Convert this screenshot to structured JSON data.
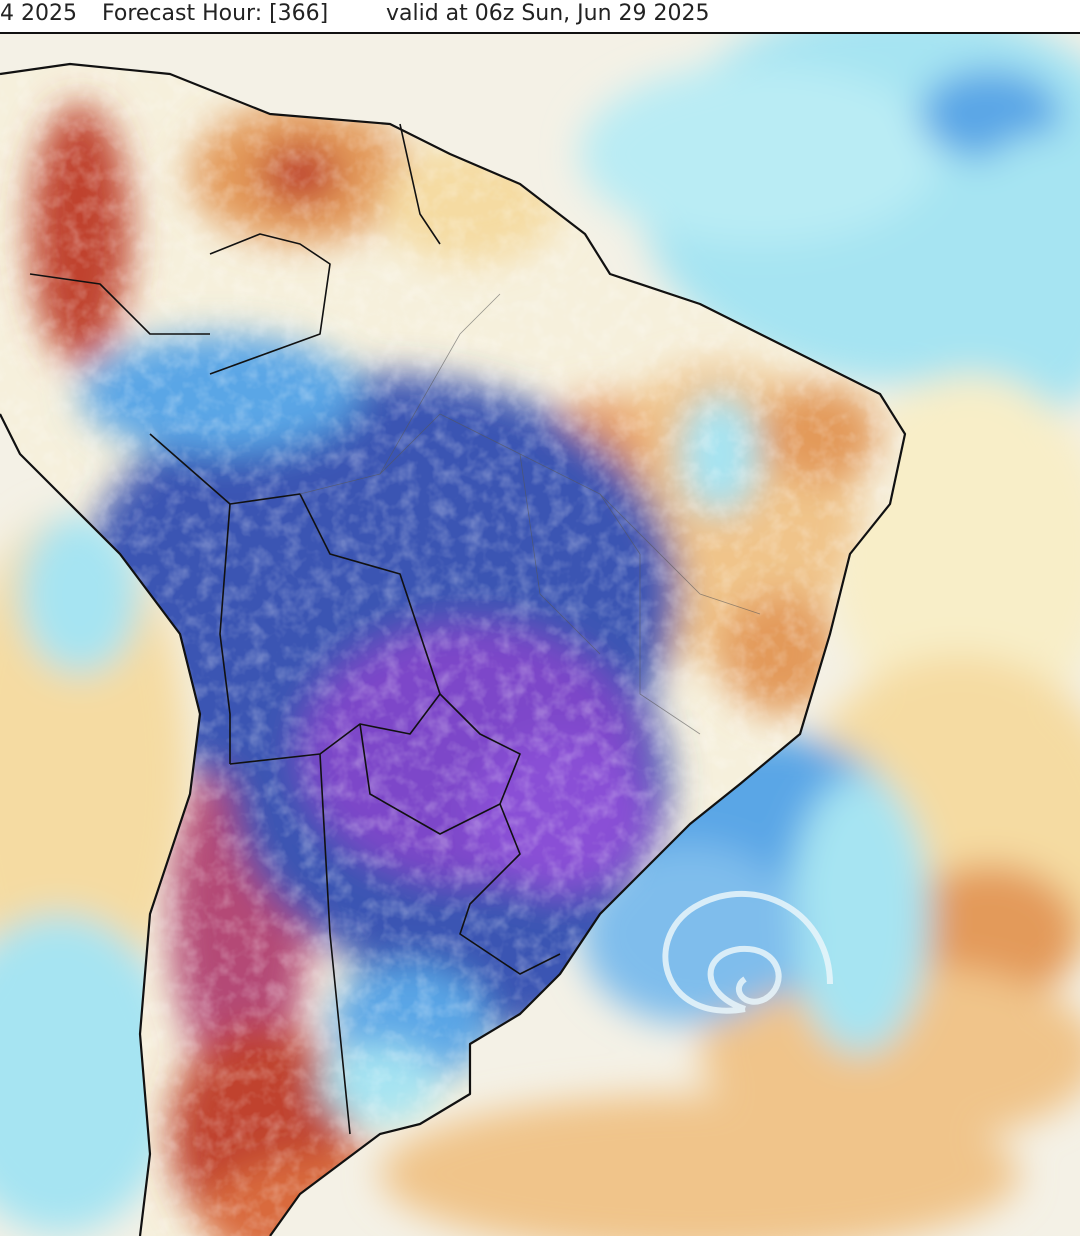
{
  "header": {
    "run_fragment": "4 2025",
    "forecast_hour": "Forecast Hour: [366]",
    "valid_time": "valid at 06z Sun, Jun 29 2025"
  },
  "map": {
    "region": "South America",
    "field": "temperature anomaly",
    "palette": {
      "strong_cold": "#7d46c9",
      "cold": "#3a55b3",
      "cool": "#5aa6e6",
      "mild_cool": "#a6e4f2",
      "neutral": "#f6f3e6",
      "mild_warm": "#f5dba2",
      "warm": "#e39a5a",
      "hot": "#c0432e",
      "very_hot": "#b44a76"
    }
  }
}
